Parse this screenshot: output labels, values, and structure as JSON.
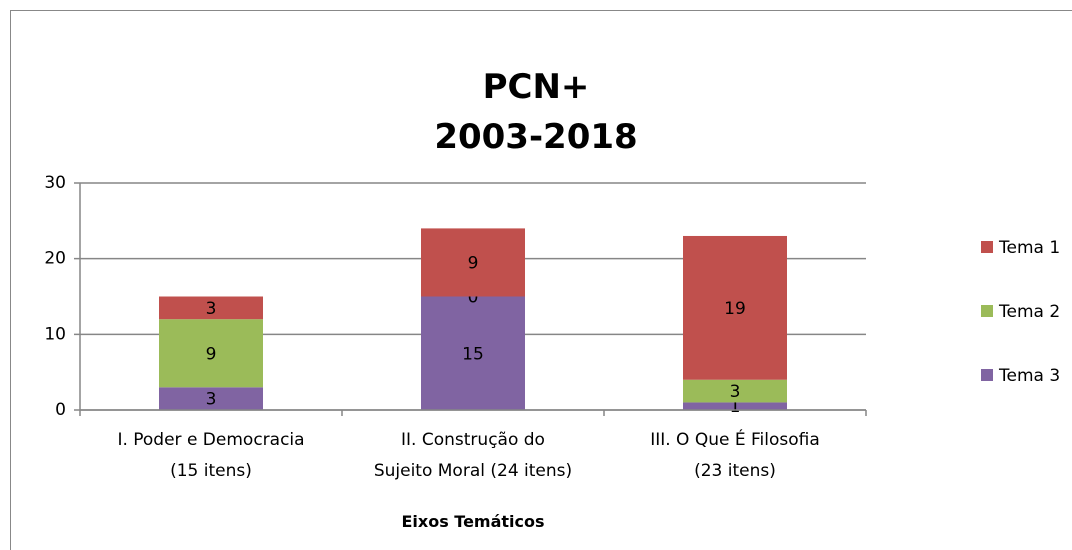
{
  "chart_data": {
    "type": "stacked_bar",
    "title": "PCN+\n2003-2018",
    "x_label": "Eixos Temáticos",
    "categories": [
      "I. Poder e Democracia\n(15 itens)",
      "II. Construção do\nSujeito Moral (24 itens)",
      "III. O Que É Filosofia\n(23 itens)"
    ],
    "series": [
      {
        "name": "Tema 3",
        "color": "#8064a2",
        "values": [
          3,
          15,
          1
        ]
      },
      {
        "name": "Tema 2",
        "color": "#9bbb59",
        "values": [
          9,
          0,
          3
        ]
      },
      {
        "name": "Tema 1",
        "color": "#c0504d",
        "values": [
          3,
          9,
          19
        ]
      }
    ],
    "ylim": [
      0,
      30
    ],
    "yticks": [
      0,
      10,
      20,
      30
    ],
    "grid": true,
    "legend": "right"
  }
}
